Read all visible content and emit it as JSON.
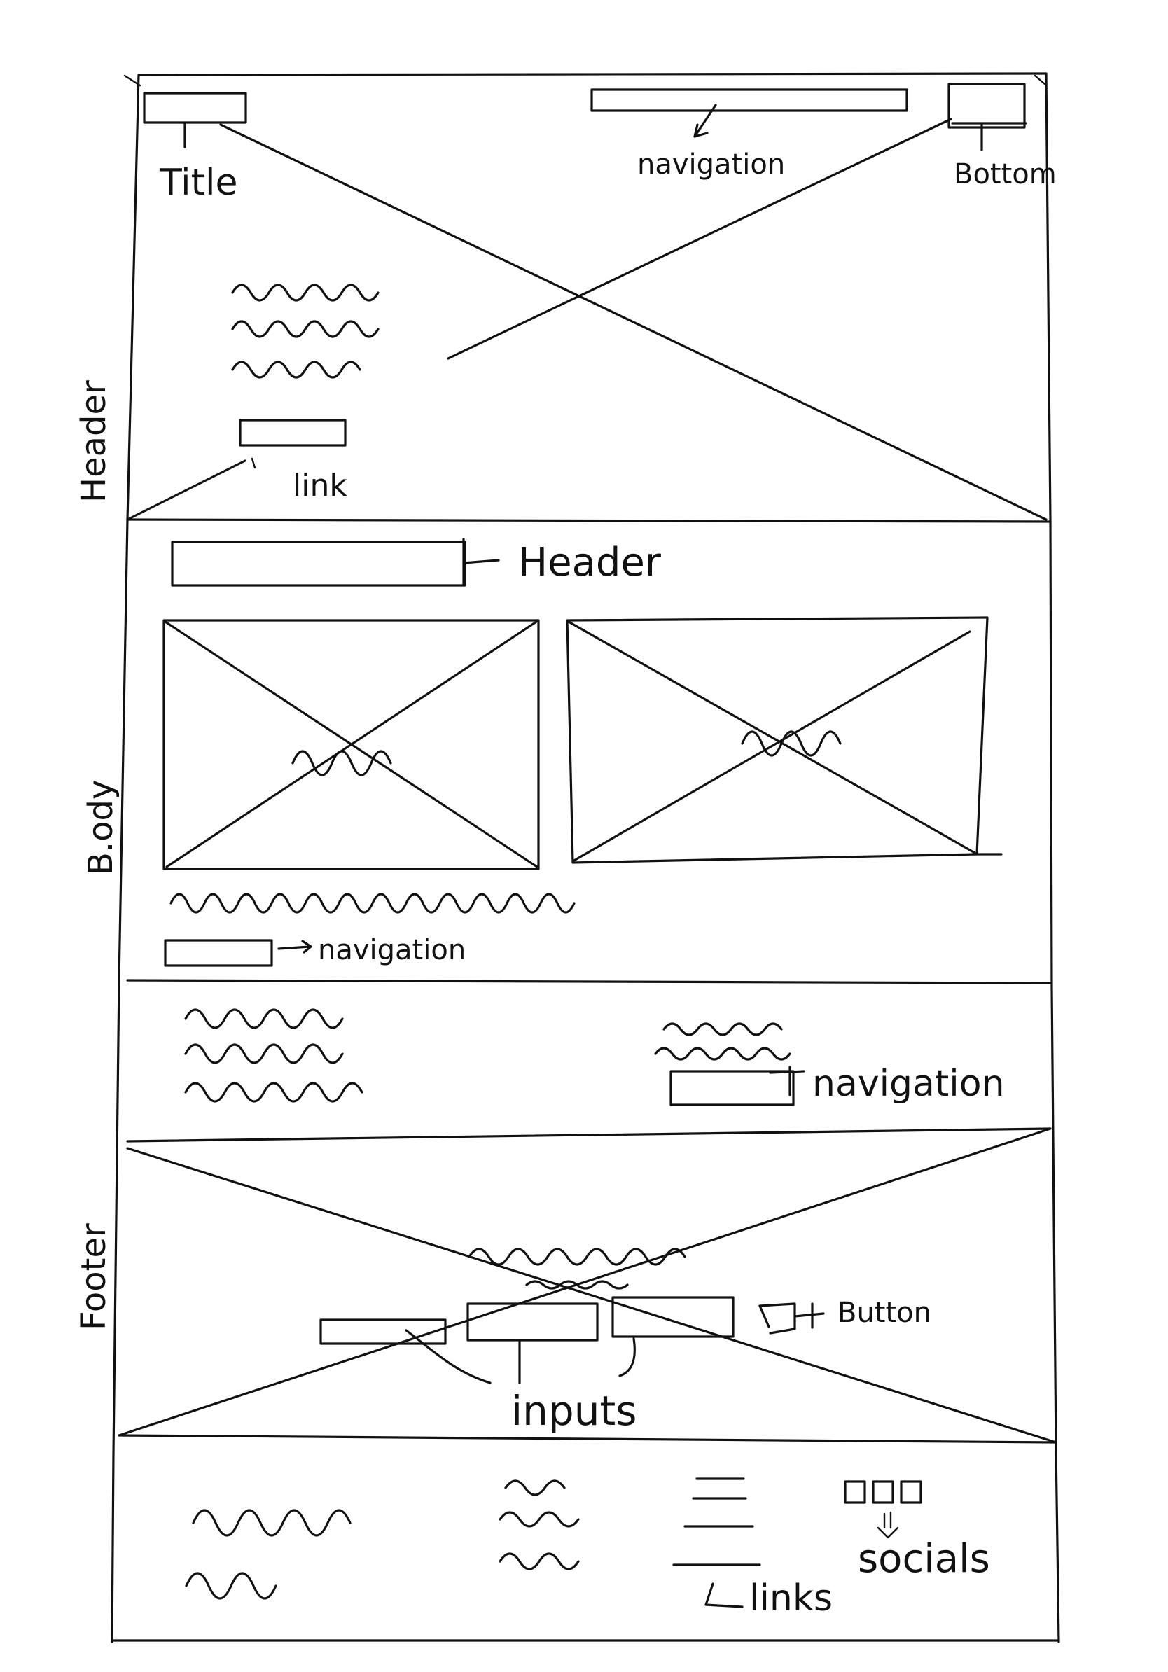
{
  "sections": {
    "header": "Header",
    "body": "B.ody",
    "footer": "Footer"
  },
  "annotations": {
    "title": "Title",
    "navigation_top": "navigation",
    "bottom": "Bottom",
    "link": "link",
    "body_header": "Header",
    "body_navigation": "navigation",
    "middle_navigation": "navigation",
    "button": "Button",
    "inputs": "inputs",
    "socials": "socials",
    "links": "links"
  },
  "colors": {
    "ink": "#111111",
    "paper": "#ffffff"
  }
}
